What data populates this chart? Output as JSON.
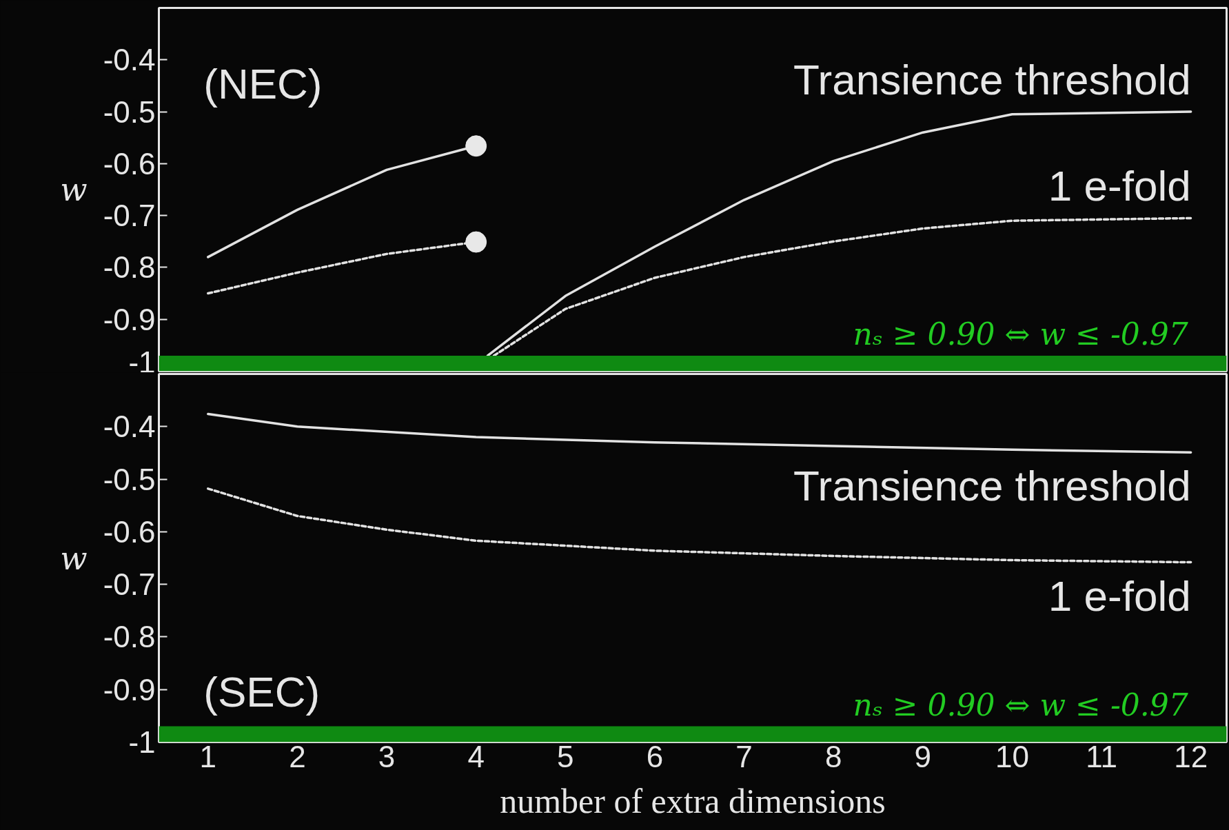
{
  "chart_data": [
    {
      "type": "line",
      "ylabel": "w",
      "xlim": [
        0.45,
        12.4
      ],
      "ylim": [
        -1,
        -0.3
      ],
      "xticks": [
        1,
        2,
        3,
        4,
        5,
        6,
        7,
        8,
        9,
        10,
        11,
        12
      ],
      "yticks": [
        {
          "value": -1,
          "label": "-1"
        },
        -0.9,
        -0.8,
        -0.7,
        -0.6,
        -0.5,
        -0.4
      ],
      "tick_labels": "y",
      "grid": false,
      "annotations": [
        "(NEC)"
      ],
      "bands": [
        {
          "axis": "y",
          "from": -1,
          "to": -0.97,
          "label": "nₛ ≥ 0.90 ⇔ w ≤ -0.97",
          "color": "#0f8a12"
        }
      ],
      "series": [
        {
          "name": "Transience threshold",
          "color": "#e2e2e2",
          "line_style": "solid",
          "x": [
            1,
            2,
            3,
            4,
            4.06,
            4.13,
            5,
            6,
            7,
            8,
            9,
            10,
            12
          ],
          "values": [
            -0.78,
            -0.689,
            -0.612,
            -0.566,
            null,
            -0.97,
            -0.855,
            -0.76,
            -0.67,
            -0.595,
            -0.54,
            -0.505,
            -0.5
          ]
        },
        {
          "name": "1 e-fold",
          "color": "#e2e2e2",
          "line_style": "dashed",
          "x": [
            1,
            2,
            3,
            4,
            4.1,
            4.2,
            5,
            6,
            7,
            8,
            9,
            10,
            12
          ],
          "values": [
            -0.85,
            -0.81,
            -0.774,
            -0.751,
            null,
            -0.97,
            -0.88,
            -0.82,
            -0.78,
            -0.75,
            -0.725,
            -0.71,
            -0.705
          ]
        },
        {
          "type": "scatter",
          "marker": "circle",
          "color": "#e8e8e8",
          "x": [
            4,
            4
          ],
          "values": [
            -0.566,
            -0.751
          ]
        }
      ]
    },
    {
      "type": "line",
      "ylabel": "w",
      "xlabel": "number of extra dimensions",
      "xlim": [
        0.45,
        12.4
      ],
      "ylim": [
        -1,
        -0.3
      ],
      "xticks": [
        1,
        2,
        3,
        4,
        5,
        6,
        7,
        8,
        9,
        10,
        11,
        12
      ],
      "yticks": [
        {
          "value": -1,
          "label": "-1"
        },
        -0.9,
        -0.8,
        -0.7,
        -0.6,
        -0.5,
        -0.4
      ],
      "grid": false,
      "annotations": [
        "(SEC)"
      ],
      "bands": [
        {
          "axis": "y",
          "from": -1,
          "to": -0.97,
          "label": "nₛ ≥ 0.90 ⇔ w ≤ -0.97",
          "color": "#0f8a12"
        }
      ],
      "series": [
        {
          "name": "Transience threshold",
          "color": "#e2e2e2",
          "line_style": "solid",
          "x": [
            1,
            2,
            4,
            6,
            8,
            10,
            12
          ],
          "values": [
            -0.376,
            -0.4,
            -0.42,
            -0.43,
            -0.437,
            -0.444,
            -0.449
          ]
        },
        {
          "name": "1 e-fold",
          "color": "#e2e2e2",
          "line_style": "dashed",
          "x": [
            1,
            2,
            3,
            4,
            6,
            8,
            10,
            12
          ],
          "values": [
            -0.518,
            -0.57,
            -0.596,
            -0.617,
            -0.636,
            -0.646,
            -0.654,
            -0.658
          ]
        }
      ]
    }
  ]
}
